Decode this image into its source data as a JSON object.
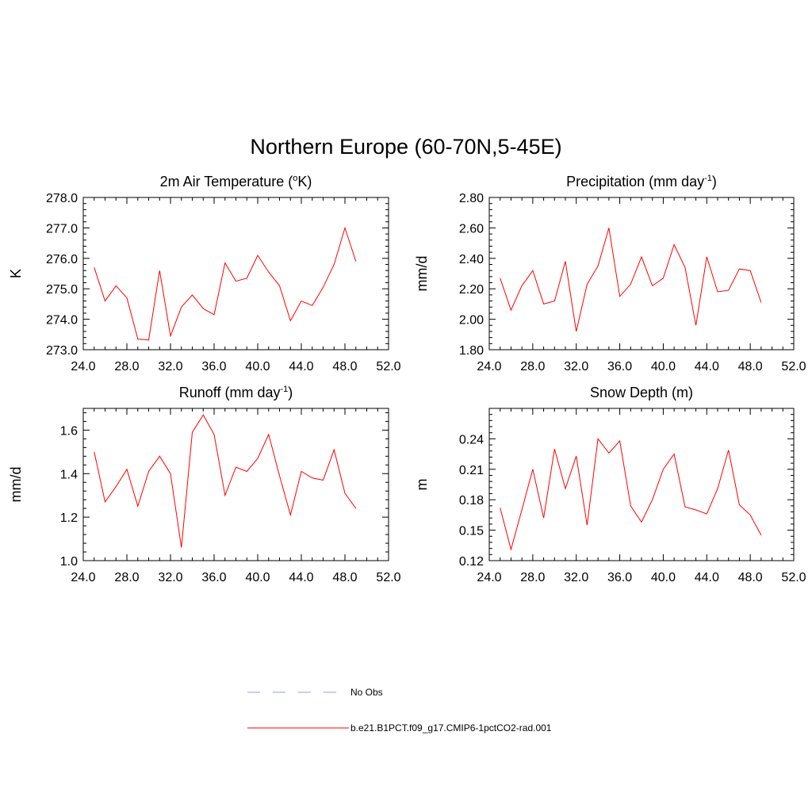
{
  "title": "Northern Europe (60-70N,5-45E)",
  "colors": {
    "series": "#ff0000",
    "obs": "#9999ee",
    "axis": "#000000",
    "background": "#ffffff"
  },
  "legend": {
    "placement": "bottom",
    "entries": [
      {
        "label": "No Obs",
        "style": "dashed",
        "color": "#9999ee"
      },
      {
        "label": "b.e21.B1PCT.f09_g17.CMIP6-1pctCO2-rad.001",
        "style": "solid",
        "color": "#ff0000"
      }
    ]
  },
  "chart_data": [
    {
      "type": "line",
      "title": "2m Air Temperature (",
      "title_sup": "o",
      "title_after": "K)",
      "ylabel": "K",
      "xlim": [
        24,
        52
      ],
      "ylim": [
        273,
        278
      ],
      "xticks": [
        "24.0",
        "28.0",
        "32.0",
        "36.0",
        "40.0",
        "44.0",
        "48.0",
        "52.0"
      ],
      "yticks": [
        "273.0",
        "274.0",
        "275.0",
        "276.0",
        "277.0",
        "278.0"
      ],
      "grid": false,
      "series": [
        {
          "x": [
            25,
            26,
            27,
            28,
            29,
            30,
            31,
            32,
            33,
            34,
            35,
            36,
            37,
            38,
            39,
            40,
            41,
            42,
            43,
            44,
            45,
            46,
            47,
            48,
            49
          ],
          "values": [
            275.7,
            274.6,
            275.1,
            274.7,
            273.35,
            273.32,
            275.6,
            273.45,
            274.4,
            274.8,
            274.35,
            274.15,
            275.85,
            275.25,
            275.35,
            276.1,
            275.55,
            275.1,
            273.95,
            274.6,
            274.45,
            275.05,
            275.8,
            277.0,
            275.9
          ]
        }
      ]
    },
    {
      "type": "line",
      "title": "Precipitation (mm day",
      "title_sup": "-1",
      "title_after": ")",
      "ylabel": "mm/d",
      "xlim": [
        24,
        52
      ],
      "ylim": [
        1.8,
        2.8
      ],
      "xticks": [
        "24.0",
        "28.0",
        "32.0",
        "36.0",
        "40.0",
        "44.0",
        "48.0",
        "52.0"
      ],
      "yticks": [
        "1.80",
        "2.00",
        "2.20",
        "2.40",
        "2.60",
        "2.80"
      ],
      "grid": false,
      "series": [
        {
          "x": [
            25,
            26,
            27,
            28,
            29,
            30,
            31,
            32,
            33,
            34,
            35,
            36,
            37,
            38,
            39,
            40,
            41,
            42,
            43,
            44,
            45,
            46,
            47,
            48,
            49
          ],
          "values": [
            2.27,
            2.06,
            2.22,
            2.32,
            2.1,
            2.12,
            2.38,
            1.92,
            2.23,
            2.35,
            2.6,
            2.15,
            2.23,
            2.41,
            2.22,
            2.27,
            2.49,
            2.34,
            1.96,
            2.41,
            2.18,
            2.19,
            2.33,
            2.32,
            2.11
          ]
        }
      ]
    },
    {
      "type": "line",
      "title": "Runoff (mm day",
      "title_sup": "-1",
      "title_after": ")",
      "ylabel": "mm/d",
      "xlim": [
        24,
        52
      ],
      "ylim": [
        1.0,
        1.7
      ],
      "xticks": [
        "24.0",
        "28.0",
        "32.0",
        "36.0",
        "40.0",
        "44.0",
        "48.0",
        "52.0"
      ],
      "yticks": [
        "1.0",
        "1.2",
        "1.4",
        "1.6"
      ],
      "yticks_values": [
        1.0,
        1.2,
        1.4,
        1.6
      ],
      "grid": false,
      "series": [
        {
          "x": [
            25,
            26,
            27,
            28,
            29,
            30,
            31,
            32,
            33,
            34,
            35,
            36,
            37,
            38,
            39,
            40,
            41,
            42,
            43,
            44,
            45,
            46,
            47,
            48,
            49
          ],
          "values": [
            1.5,
            1.27,
            1.34,
            1.42,
            1.25,
            1.41,
            1.48,
            1.4,
            1.06,
            1.59,
            1.67,
            1.58,
            1.3,
            1.43,
            1.41,
            1.47,
            1.58,
            1.39,
            1.21,
            1.41,
            1.38,
            1.37,
            1.51,
            1.31,
            1.24
          ]
        }
      ]
    },
    {
      "type": "line",
      "title": "Snow Depth (m)",
      "title_sup": "",
      "title_after": "",
      "ylabel": "m",
      "xlim": [
        24,
        52
      ],
      "ylim": [
        0.12,
        0.27
      ],
      "xticks": [
        "24.0",
        "28.0",
        "32.0",
        "36.0",
        "40.0",
        "44.0",
        "48.0",
        "52.0"
      ],
      "yticks": [
        "0.12",
        "0.15",
        "0.18",
        "0.21",
        "0.24"
      ],
      "yticks_values": [
        0.12,
        0.15,
        0.18,
        0.21,
        0.24
      ],
      "grid": false,
      "series": [
        {
          "x": [
            25,
            26,
            27,
            28,
            29,
            30,
            31,
            32,
            33,
            34,
            35,
            36,
            37,
            38,
            39,
            40,
            41,
            42,
            43,
            44,
            45,
            46,
            47,
            48,
            49
          ],
          "values": [
            0.172,
            0.131,
            0.17,
            0.21,
            0.162,
            0.23,
            0.191,
            0.223,
            0.155,
            0.24,
            0.226,
            0.238,
            0.174,
            0.158,
            0.18,
            0.21,
            0.225,
            0.173,
            0.17,
            0.166,
            0.191,
            0.229,
            0.175,
            0.165,
            0.145
          ]
        }
      ]
    }
  ]
}
